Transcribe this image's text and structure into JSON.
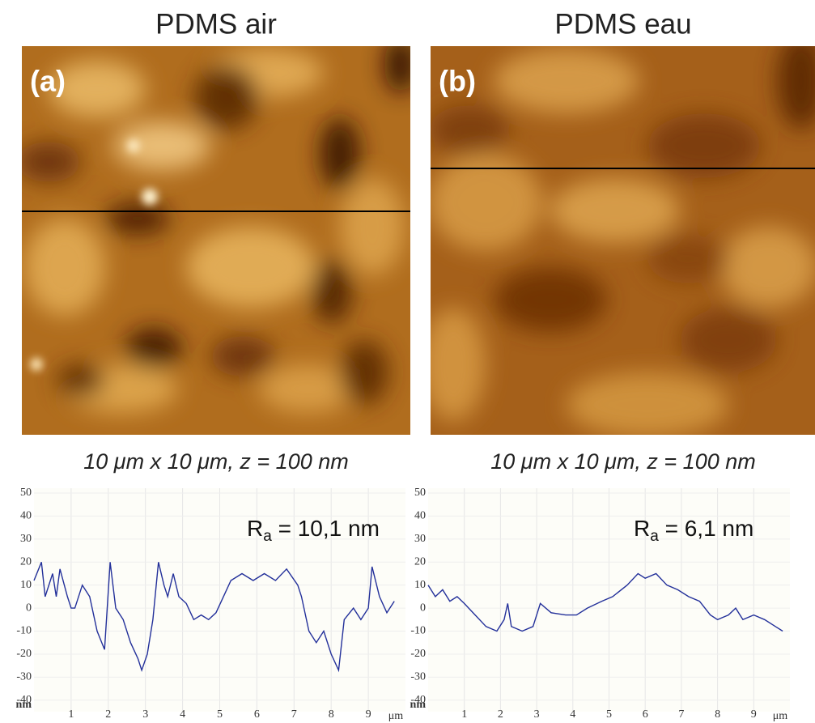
{
  "chart_data": [
    {
      "type": "line",
      "title": "PDMS air",
      "label": "(a)",
      "caption": "10 μm x 10 μm, z = 100 nm",
      "annotation": {
        "symbol": "R",
        "subscript": "a",
        "text": " = 10,1 nm"
      },
      "xlabel": "μm",
      "ylabel": "nm",
      "xlim": [
        0,
        10
      ],
      "ylim": [
        -45,
        50
      ],
      "xticks": [
        1,
        2,
        3,
        4,
        5,
        6,
        7,
        8,
        9
      ],
      "yticks": [
        50,
        40,
        30,
        20,
        10,
        0,
        -10,
        -20,
        -30,
        -40
      ],
      "grid": true,
      "x": [
        0,
        0.2,
        0.3,
        0.5,
        0.6,
        0.7,
        0.9,
        1.0,
        1.1,
        1.3,
        1.5,
        1.7,
        1.9,
        2.05,
        2.2,
        2.4,
        2.6,
        2.8,
        2.9,
        3.05,
        3.2,
        3.35,
        3.5,
        3.6,
        3.75,
        3.9,
        4.1,
        4.3,
        4.5,
        4.7,
        4.9,
        5.1,
        5.3,
        5.6,
        5.9,
        6.2,
        6.5,
        6.8,
        7.1,
        7.2,
        7.4,
        7.6,
        7.8,
        8.0,
        8.2,
        8.35,
        8.6,
        8.8,
        9.0,
        9.1,
        9.3,
        9.5,
        9.7
      ],
      "series": [
        {
          "color": "#23309a",
          "values": [
            12,
            20,
            5,
            15,
            5,
            17,
            5,
            0,
            0,
            10,
            5,
            -10,
            -18,
            20,
            0,
            -5,
            -15,
            -22,
            -27,
            -20,
            -5,
            20,
            10,
            5,
            15,
            5,
            2,
            -5,
            -3,
            -5,
            -2,
            5,
            12,
            15,
            12,
            15,
            12,
            17,
            10,
            5,
            -10,
            -15,
            -10,
            -20,
            -27,
            -5,
            0,
            -5,
            0,
            18,
            5,
            -2,
            3
          ]
        }
      ]
    },
    {
      "type": "line",
      "title": "PDMS eau",
      "label": "(b)",
      "caption": "10 μm x 10 μm, z = 100 nm",
      "annotation": {
        "symbol": "R",
        "subscript": "a",
        "text": " = 6,1 nm"
      },
      "xlabel": "μm",
      "ylabel": "nm",
      "xlim": [
        0,
        10
      ],
      "ylim": [
        -45,
        50
      ],
      "xticks": [
        1,
        2,
        3,
        4,
        5,
        6,
        7,
        8,
        9
      ],
      "yticks": [
        50,
        40,
        30,
        20,
        10,
        0,
        -10,
        -20,
        -30,
        -40
      ],
      "grid": true,
      "x": [
        0,
        0.2,
        0.4,
        0.6,
        0.8,
        1.0,
        1.3,
        1.6,
        1.9,
        2.1,
        2.2,
        2.3,
        2.6,
        2.9,
        3.1,
        3.4,
        3.8,
        4.1,
        4.4,
        4.8,
        5.1,
        5.5,
        5.8,
        6.0,
        6.3,
        6.6,
        6.9,
        7.2,
        7.5,
        7.8,
        8.0,
        8.3,
        8.5,
        8.7,
        9.0,
        9.3,
        9.6,
        9.8
      ],
      "series": [
        {
          "color": "#23309a",
          "values": [
            10,
            5,
            8,
            3,
            5,
            2,
            -3,
            -8,
            -10,
            -5,
            2,
            -8,
            -10,
            -8,
            2,
            -2,
            -3,
            -3,
            0,
            3,
            5,
            10,
            15,
            13,
            15,
            10,
            8,
            5,
            3,
            -3,
            -5,
            -3,
            0,
            -5,
            -3,
            -5,
            -8,
            -10
          ]
        }
      ]
    }
  ]
}
